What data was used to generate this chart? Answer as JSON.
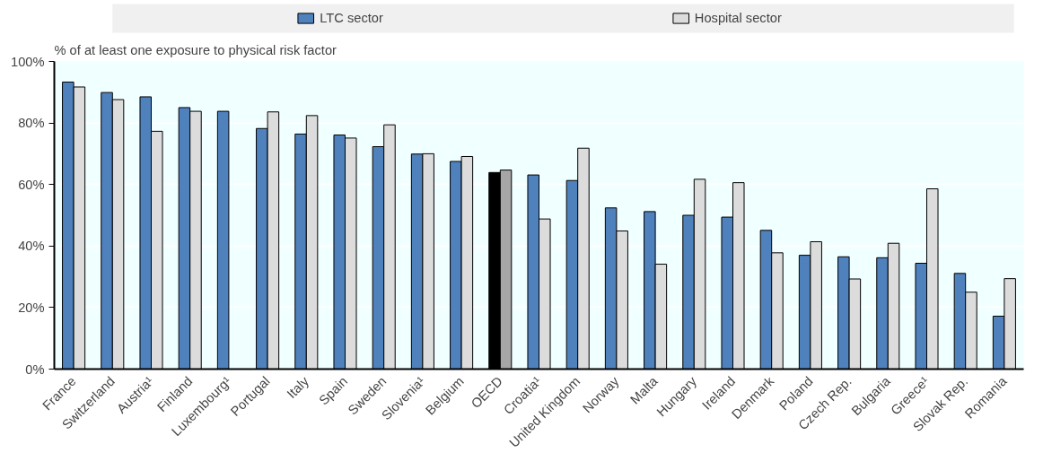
{
  "chart_data": {
    "type": "bar",
    "ylabel": "% of at least one exposure to physical risk factor",
    "categories": [
      "France",
      "Switzerland",
      "Austria¹",
      "Finland",
      "Luxembourg¹",
      "Portugal",
      "Italy",
      "Spain",
      "Sweden",
      "Slovenia¹",
      "Belgium",
      "OECD",
      "Croatia¹",
      "United Kingdom",
      "Norway",
      "Malta",
      "Hungary",
      "Ireland",
      "Denmark",
      "Poland",
      "Czech Rep.",
      "Bulgaria",
      "Greece¹",
      "Slovak Rep.",
      "Romania"
    ],
    "series": [
      {
        "name": "LTC sector",
        "color": "#4f81bd",
        "colors": [
          "#4f81bd",
          "#4f81bd",
          "#4f81bd",
          "#4f81bd",
          "#4f81bd",
          "#4f81bd",
          "#4f81bd",
          "#4f81bd",
          "#4f81bd",
          "#4f81bd",
          "#4f81bd",
          "#000000",
          "#4f81bd",
          "#4f81bd",
          "#4f81bd",
          "#4f81bd",
          "#4f81bd",
          "#4f81bd",
          "#4f81bd",
          "#4f81bd",
          "#4f81bd",
          "#4f81bd",
          "#4f81bd",
          "#4f81bd",
          "#4f81bd"
        ],
        "values": [
          93.3,
          89.9,
          88.5,
          85.0,
          83.8,
          78.2,
          76.4,
          76.1,
          72.3,
          69.9,
          67.5,
          63.9,
          63.1,
          61.3,
          52.4,
          51.2,
          50.0,
          49.4,
          45.1,
          37.0,
          36.5,
          36.2,
          34.4,
          31.1,
          17.2
        ]
      },
      {
        "name": "Hospital sector",
        "color": "#dcdcdc",
        "colors": [
          "#dcdcdc",
          "#dcdcdc",
          "#dcdcdc",
          "#dcdcdc",
          "#dcdcdc",
          "#dcdcdc",
          "#dcdcdc",
          "#dcdcdc",
          "#dcdcdc",
          "#dcdcdc",
          "#dcdcdc",
          "#a6a6a6",
          "#dcdcdc",
          "#dcdcdc",
          "#dcdcdc",
          "#dcdcdc",
          "#dcdcdc",
          "#dcdcdc",
          "#dcdcdc",
          "#dcdcdc",
          "#dcdcdc",
          "#dcdcdc",
          "#dcdcdc",
          "#dcdcdc",
          "#dcdcdc"
        ],
        "values": [
          91.7,
          87.6,
          77.3,
          83.8,
          null,
          83.6,
          82.4,
          75.1,
          79.4,
          70.0,
          69.1,
          64.7,
          48.8,
          71.8,
          44.9,
          34.1,
          61.7,
          60.6,
          37.8,
          41.4,
          29.3,
          40.9,
          58.6,
          25.0,
          29.4
        ]
      }
    ],
    "ylim": [
      0,
      100
    ],
    "yticks": [
      {
        "value": 0,
        "label": "0%"
      },
      {
        "value": 20,
        "label": "20%"
      },
      {
        "value": 40,
        "label": "40%"
      },
      {
        "value": 60,
        "label": "60%"
      },
      {
        "value": 80,
        "label": "80%"
      },
      {
        "value": 100,
        "label": "100%"
      }
    ],
    "grid": "y",
    "legend": "top"
  }
}
